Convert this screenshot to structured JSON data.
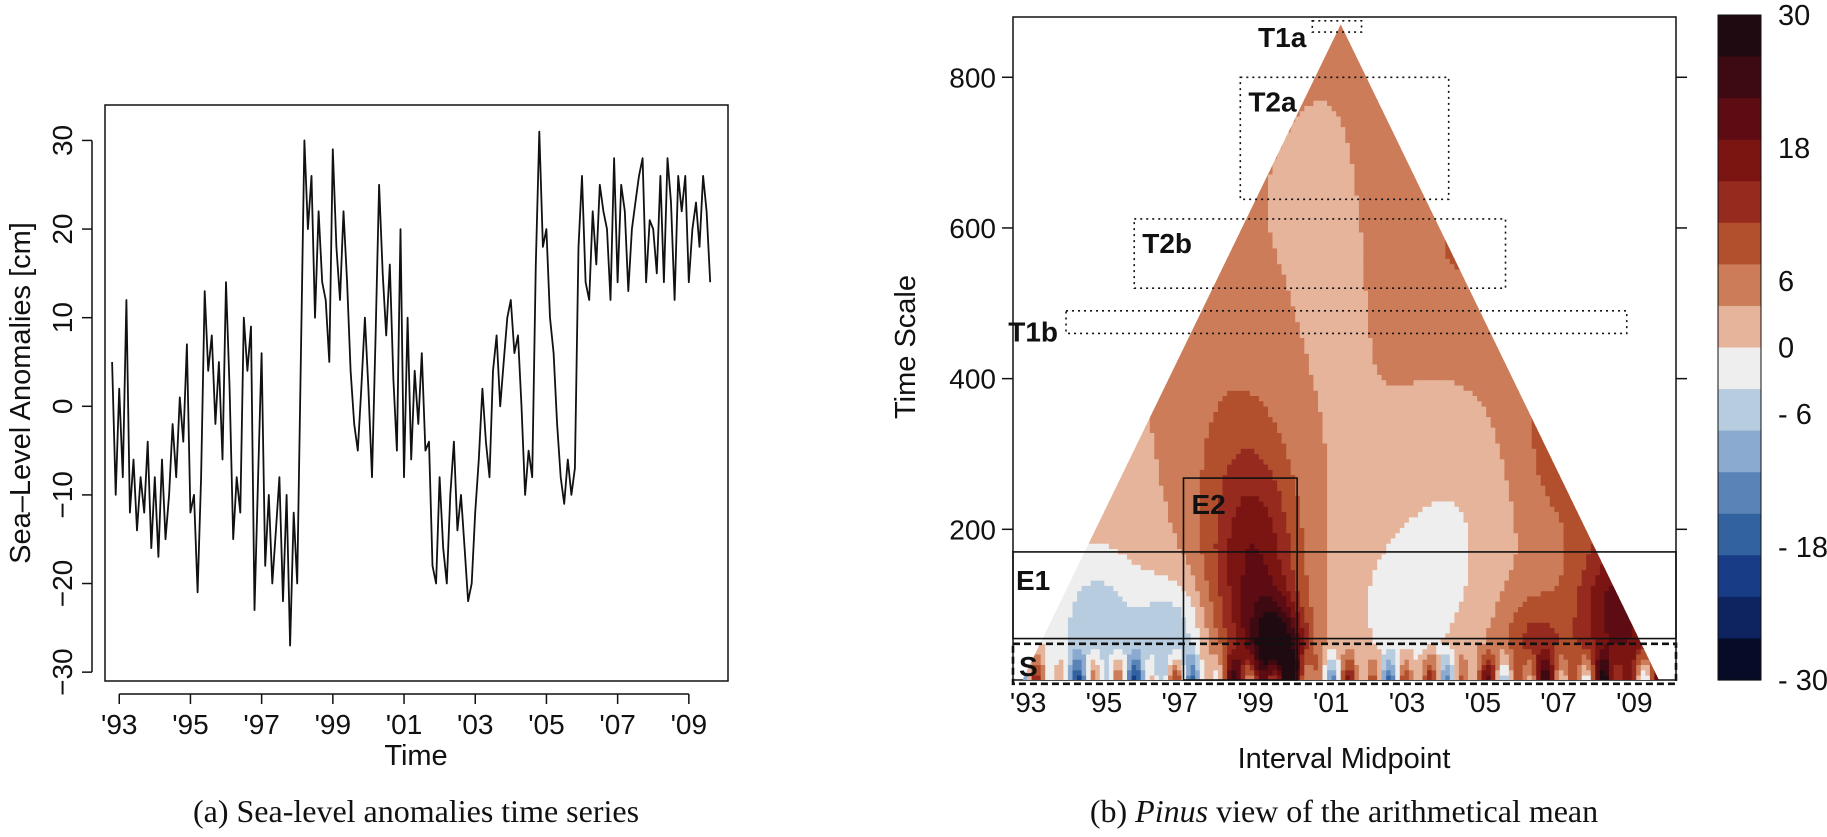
{
  "chart_data": [
    {
      "type": "line",
      "xlabel": "Time",
      "ylabel": "Sea–Level Anomalies [cm]",
      "caption": "(a) Sea-level anomalies time series",
      "xlim": [
        1992.6,
        2010.1
      ],
      "ylim": [
        -31,
        34
      ],
      "x_ticks": [
        1993,
        1995,
        1997,
        1999,
        2001,
        2003,
        2005,
        2007,
        2009
      ],
      "x_tick_labels": [
        "'93",
        "'95",
        "'97",
        "'99",
        "'01",
        "'03",
        "'05",
        "'07",
        "'09"
      ],
      "y_ticks": [
        -30,
        -20,
        -10,
        0,
        10,
        20,
        30
      ],
      "y_tick_labels": [
        "−30",
        "−20",
        "−10",
        "0",
        "10",
        "20",
        "30"
      ],
      "series": [
        {
          "x": [
            1992.8,
            1992.9,
            1993.0,
            1993.1,
            1993.2,
            1993.3,
            1993.4,
            1993.5,
            1993.6,
            1993.7,
            1993.8,
            1993.9,
            1994.0,
            1994.1,
            1994.2,
            1994.3,
            1994.4,
            1994.5,
            1994.6,
            1994.7,
            1994.8,
            1994.9,
            1995.0,
            1995.1,
            1995.2,
            1995.3,
            1995.4,
            1995.5,
            1995.6,
            1995.7,
            1995.8,
            1995.9,
            1996.0,
            1996.1,
            1996.2,
            1996.3,
            1996.4,
            1996.5,
            1996.6,
            1996.7,
            1996.8,
            1996.9,
            1997.0,
            1997.1,
            1997.2,
            1997.3,
            1997.4,
            1997.5,
            1997.6,
            1997.7,
            1997.8,
            1997.9,
            1998.0,
            1998.1,
            1998.2,
            1998.3,
            1998.4,
            1998.5,
            1998.6,
            1998.7,
            1998.8,
            1998.9,
            1999.0,
            1999.1,
            1999.2,
            1999.3,
            1999.4,
            1999.5,
            1999.6,
            1999.7,
            1999.8,
            1999.9,
            2000.0,
            2000.1,
            2000.2,
            2000.3,
            2000.4,
            2000.5,
            2000.6,
            2000.7,
            2000.8,
            2000.9,
            2001.0,
            2001.1,
            2001.2,
            2001.3,
            2001.4,
            2001.5,
            2001.6,
            2001.7,
            2001.8,
            2001.9,
            2002.0,
            2002.1,
            2002.2,
            2002.3,
            2002.4,
            2002.5,
            2002.6,
            2002.7,
            2002.8,
            2002.9,
            2003.0,
            2003.1,
            2003.2,
            2003.3,
            2003.4,
            2003.5,
            2003.6,
            2003.7,
            2003.8,
            2003.9,
            2004.0,
            2004.1,
            2004.2,
            2004.3,
            2004.4,
            2004.5,
            2004.6,
            2004.7,
            2004.8,
            2004.9,
            2005.0,
            2005.1,
            2005.2,
            2005.3,
            2005.4,
            2005.5,
            2005.6,
            2005.7,
            2005.8,
            2005.9,
            2006.0,
            2006.1,
            2006.2,
            2006.3,
            2006.4,
            2006.5,
            2006.6,
            2006.7,
            2006.8,
            2006.9,
            2007.0,
            2007.1,
            2007.2,
            2007.3,
            2007.4,
            2007.5,
            2007.6,
            2007.7,
            2007.8,
            2007.9,
            2008.0,
            2008.1,
            2008.2,
            2008.3,
            2008.4,
            2008.5,
            2008.6,
            2008.7,
            2008.8,
            2008.9,
            2009.0,
            2009.1,
            2009.2,
            2009.3,
            2009.4,
            2009.5,
            2009.6
          ],
          "values": [
            5,
            -10,
            2,
            -8,
            12,
            -12,
            -6,
            -14,
            -8,
            -12,
            -4,
            -16,
            -8,
            -17,
            -6,
            -15,
            -10,
            -2,
            -8,
            1,
            -4,
            7,
            -12,
            -10,
            -21,
            -8,
            13,
            4,
            8,
            -2,
            5,
            -6,
            14,
            2,
            -15,
            -8,
            -12,
            10,
            4,
            9,
            -23,
            -8,
            6,
            -18,
            -10,
            -20,
            -14,
            -8,
            -22,
            -10,
            -27,
            -12,
            -20,
            5,
            30,
            20,
            26,
            10,
            22,
            14,
            12,
            5,
            29,
            18,
            12,
            22,
            14,
            4,
            -2,
            -5,
            2,
            10,
            2,
            -8,
            8,
            25,
            15,
            8,
            16,
            3,
            -5,
            20,
            -8,
            10,
            -6,
            4,
            -2,
            6,
            -5,
            -4,
            -18,
            -20,
            -8,
            -16,
            -20,
            -10,
            -4,
            -14,
            -10,
            -16,
            -22,
            -20,
            -12,
            -6,
            2,
            -4,
            -8,
            4,
            8,
            0,
            5,
            10,
            12,
            6,
            8,
            0,
            -10,
            -5,
            -8,
            16,
            31,
            18,
            20,
            10,
            6,
            -2,
            -8,
            -11,
            -6,
            -10,
            -7,
            18,
            26,
            14,
            12,
            22,
            16,
            25,
            22,
            20,
            12,
            28,
            14,
            25,
            22,
            13,
            20,
            23,
            26,
            28,
            14,
            21,
            20,
            15,
            26,
            14,
            28,
            23,
            12,
            26,
            22,
            26,
            14,
            20,
            23,
            18,
            26,
            22,
            14
          ]
        }
      ]
    },
    {
      "type": "heatmap",
      "xlabel": "Interval Midpoint",
      "ylabel": "Time Scale",
      "caption_prefix": "(b) ",
      "caption_italic": "Pinus",
      "caption_suffix": " view of the arithmetical mean",
      "xlim": [
        1992.6,
        2010.1
      ],
      "ylim": [
        0,
        880
      ],
      "x_ticks": [
        1993,
        1995,
        1997,
        1999,
        2001,
        2003,
        2005,
        2007,
        2009
      ],
      "x_tick_labels": [
        "'93",
        "'95",
        "'97",
        "'99",
        "'01",
        "'03",
        "'05",
        "'07",
        "'09"
      ],
      "y_ticks": [
        200,
        400,
        600,
        800
      ],
      "y_tick_labels": [
        "200",
        "400",
        "600",
        "800"
      ],
      "colorbar": {
        "range": [
          -30,
          30
        ],
        "tick_values": [
          30,
          18,
          6,
          0,
          -6,
          -18,
          -30
        ],
        "tick_labels": [
          "30",
          "18",
          "6",
          "0",
          "- 6",
          "- 18",
          "- 30"
        ],
        "colors": [
          "#1e0a10",
          "#3e0a12",
          "#5c0c12",
          "#7a1512",
          "#962a1e",
          "#b2502e",
          "#cc7c58",
          "#e6b49a",
          "#eeeeee",
          "#b8cce0",
          "#8aaad0",
          "#5a84b8",
          "#3262a0",
          "#183c86",
          "#0d2460",
          "#060c28"
        ]
      },
      "regions": [
        {
          "label": "T1a",
          "style": "dotted",
          "x_range": [
            2000.5,
            2001.8
          ],
          "y_range": [
            860,
            875
          ]
        },
        {
          "label": "T2a",
          "style": "dotted",
          "x_range": [
            1998.6,
            2004.1
          ],
          "y_range": [
            638,
            800
          ]
        },
        {
          "label": "T2b",
          "style": "dotted",
          "x_range": [
            1995.8,
            2005.6
          ],
          "y_range": [
            520,
            612
          ]
        },
        {
          "label": "T1b",
          "style": "dotted",
          "x_range": [
            1994.0,
            2008.8
          ],
          "y_range": [
            460,
            490
          ]
        },
        {
          "label": "E2",
          "style": "solid",
          "x_range": [
            1997.1,
            2000.1
          ],
          "y_range": [
            0,
            268
          ]
        },
        {
          "label": "E1",
          "style": "solid",
          "x_range": [
            1992.6,
            2010.1
          ],
          "y_range": [
            55,
            170
          ]
        },
        {
          "label": "S",
          "style": "dashed",
          "x_range": [
            1992.6,
            2010.1
          ],
          "y_range": [
            -5,
            48
          ]
        }
      ]
    }
  ]
}
